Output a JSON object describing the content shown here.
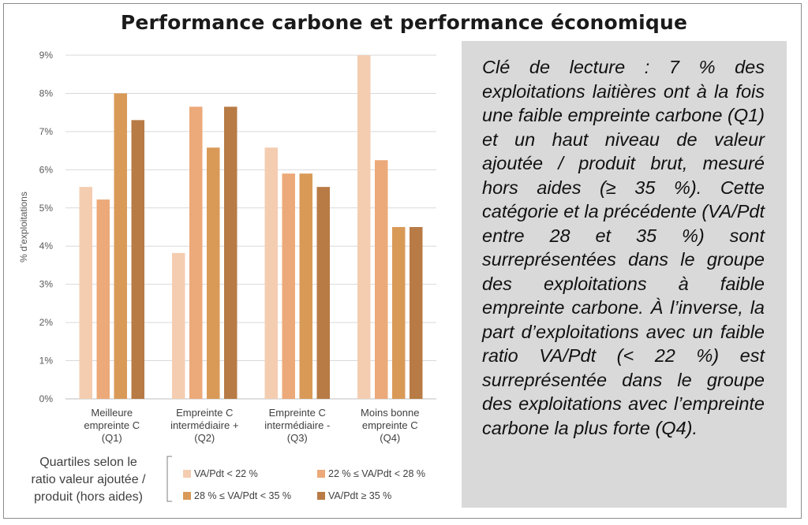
{
  "chart_data": {
    "type": "bar",
    "title": "Performance carbone et performance économique",
    "xlabel": "",
    "ylabel": "% d'exploitations",
    "ylim": [
      0,
      9
    ],
    "yticks": [
      "0%",
      "1%",
      "2%",
      "3%",
      "4%",
      "5%",
      "6%",
      "7%",
      "8%",
      "9%"
    ],
    "grid": true,
    "categories": [
      [
        "Meilleure",
        "empreinte C",
        "(Q1)"
      ],
      [
        "Empreinte C",
        "intermédiaire +",
        "(Q2)"
      ],
      [
        "Empreinte C",
        "intermédiaire -",
        "(Q3)"
      ],
      [
        "Moins bonne",
        "empreinte C",
        "(Q4)"
      ]
    ],
    "legend_title": [
      "Quartiles selon le",
      "ratio valeur ajoutée /",
      "produit (hors aides)"
    ],
    "legend_position": "bottom",
    "series": [
      {
        "name": "VA/Pdt < 22 %",
        "color": "#f4cdb1",
        "values": [
          5.55,
          3.82,
          6.58,
          9.0
        ]
      },
      {
        "name": "22 % ≤ VA/Pdt < 28 %",
        "color": "#eca979",
        "values": [
          5.22,
          7.65,
          5.9,
          6.25
        ]
      },
      {
        "name": "28 % ≤ VA/Pdt < 35 %",
        "color": "#d99a58",
        "values": [
          8.0,
          6.58,
          5.9,
          4.5
        ]
      },
      {
        "name": "VA/Pdt ≥ 35 %",
        "color": "#b87b45",
        "values": [
          7.3,
          7.65,
          5.55,
          4.5
        ]
      }
    ]
  },
  "note": {
    "text": "Clé de lecture : 7 % des exploitations laitières ont à la fois une faible empreinte carbone (Q1) et un haut niveau de valeur ajoutée / produit brut, mesuré hors aides (≥ 35 %). Cette catégorie et la précédente (VA/Pdt entre 28 et 35 %) sont surreprésentées dans le groupe des exploitations à faible empreinte carbone. À l’inverse, la part d’exploitations avec un faible ratio VA/Pdt (< 22 %) est surreprésentée dans le groupe des exploitations avec l’empreinte carbone la plus forte (Q4)."
  }
}
